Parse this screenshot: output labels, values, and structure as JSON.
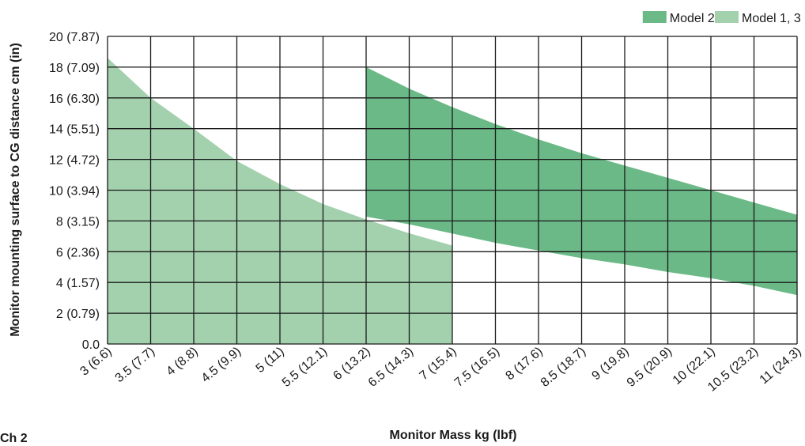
{
  "corner_text": "Ch 2",
  "colors": {
    "model2": "#6ab986",
    "model13": "#a3d1ae",
    "grid": "#1a1a1a",
    "gap": "#ffffff"
  },
  "chart_data": {
    "type": "area",
    "xlabel": "Monitor Mass kg (lbf)",
    "ylabel": "Monitor mounting surface to CG distance cm (in)",
    "xlim": [
      3,
      11
    ],
    "ylim": [
      0,
      20
    ],
    "grid": true,
    "legend_position": "top-right",
    "x_ticks": [
      {
        "value": 3,
        "label": "3 (6.6)"
      },
      {
        "value": 3.5,
        "label": "3.5 (7.7)"
      },
      {
        "value": 4,
        "label": "4 (8.8)"
      },
      {
        "value": 4.5,
        "label": "4.5 (9.9)"
      },
      {
        "value": 5,
        "label": "5 (11)"
      },
      {
        "value": 5.5,
        "label": "5.5 (12.1)"
      },
      {
        "value": 6,
        "label": "6 (13.2)"
      },
      {
        "value": 6.5,
        "label": "6.5 (14.3)"
      },
      {
        "value": 7,
        "label": "7 (15.4)"
      },
      {
        "value": 7.5,
        "label": "7.5 (16.5)"
      },
      {
        "value": 8,
        "label": "8 (17.6)"
      },
      {
        "value": 8.5,
        "label": "8.5 (18.7)"
      },
      {
        "value": 9,
        "label": "9 (19.8)"
      },
      {
        "value": 9.5,
        "label": "9.5 (20.9)"
      },
      {
        "value": 10,
        "label": "10 (22.1)"
      },
      {
        "value": 10.5,
        "label": "10.5 (23.2)"
      },
      {
        "value": 11,
        "label": "11 (24.3)"
      }
    ],
    "y_ticks": [
      {
        "value": 0,
        "label": "0.0"
      },
      {
        "value": 2,
        "label": "2 (0.79)"
      },
      {
        "value": 4,
        "label": "4 (1.57)"
      },
      {
        "value": 6,
        "label": "6 (2.36)"
      },
      {
        "value": 8,
        "label": "8 (3.15)"
      },
      {
        "value": 10,
        "label": "10 (3.94)"
      },
      {
        "value": 12,
        "label": "12 (4.72)"
      },
      {
        "value": 14,
        "label": "14 (5.51)"
      },
      {
        "value": 16,
        "label": "16 (6.30)"
      },
      {
        "value": 18,
        "label": "18 (7.09)"
      },
      {
        "value": 20,
        "label": "20 (7.87)"
      }
    ],
    "series": [
      {
        "name": "Model 1, 3",
        "color": "#a3d1ae",
        "x": [
          3,
          3.5,
          4,
          4.5,
          5,
          5.5,
          6,
          6.5,
          7
        ],
        "upper": [
          18.6,
          16.0,
          14.0,
          11.9,
          10.4,
          9.1,
          8.1,
          7.2,
          6.4
        ],
        "lower": [
          0,
          0,
          0,
          0,
          0,
          0,
          0,
          0,
          0
        ]
      },
      {
        "name": "Model 2",
        "color": "#6ab986",
        "x": [
          6,
          6.5,
          7,
          7.5,
          8,
          8.5,
          9,
          9.5,
          10,
          10.5,
          11
        ],
        "upper": [
          18.0,
          16.6,
          15.4,
          14.3,
          13.3,
          12.4,
          11.6,
          10.8,
          10.0,
          9.2,
          8.4
        ],
        "lower": [
          8.2,
          7.7,
          7.1,
          6.5,
          6.0,
          5.5,
          5.1,
          4.6,
          4.2,
          3.7,
          3.1
        ]
      }
    ],
    "legend": [
      {
        "name": "Model 2",
        "color": "#6ab986"
      },
      {
        "name": "Model 1, 3",
        "color": "#a3d1ae"
      }
    ]
  }
}
